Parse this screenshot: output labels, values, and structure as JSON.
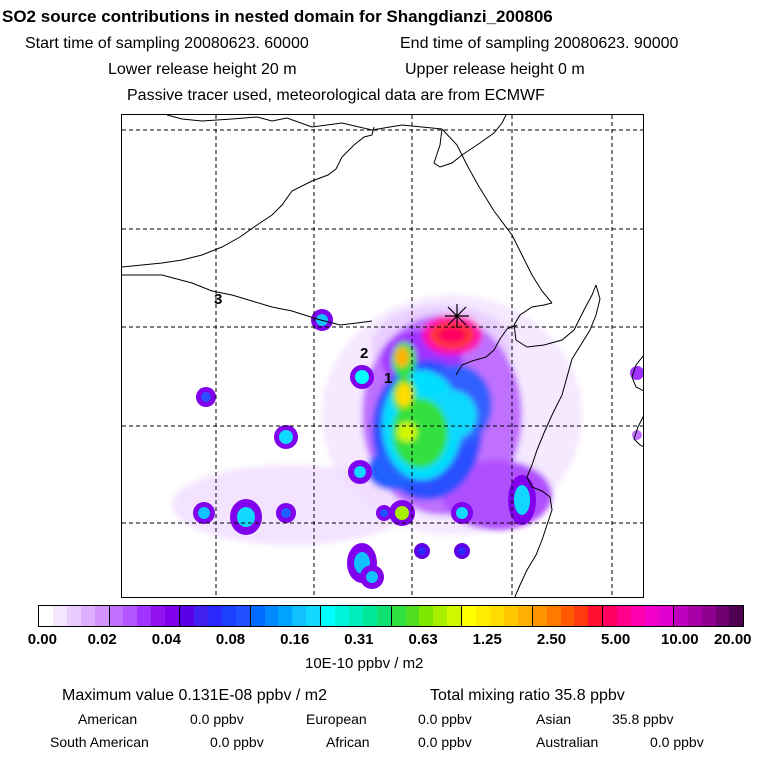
{
  "header": {
    "title": "SO2 source contributions in nested domain for Shangdianzi_200806",
    "start_time": "Start time of sampling 20080623. 60000",
    "end_time": "End time of sampling 20080623. 90000",
    "lower_release": "Lower release height   20 m",
    "upper_release": "Upper release height    0 m",
    "note": "Passive tracer used, meteorological data are from ECMWF"
  },
  "map": {
    "labels": [
      "3",
      "2",
      "1"
    ],
    "station_marker": "star-cross",
    "gridlines": "dashed"
  },
  "colorbar": {
    "ticks": [
      "0.00",
      "0.02",
      "0.04",
      "0.08",
      "0.16",
      "0.31",
      "0.63",
      "1.25",
      "2.50",
      "5.00",
      "10.00",
      "20.00"
    ],
    "unit": "10E-10 ppbv / m2",
    "colors": [
      "#ffffff",
      "#f5e6ff",
      "#ebccff",
      "#dfb0ff",
      "#d394ff",
      "#c070ff",
      "#b055ff",
      "#a033ff",
      "#9010ee",
      "#8000ee",
      "#5a00e6",
      "#4020ee",
      "#2a2aff",
      "#1e40ff",
      "#2050ff",
      "#006cff",
      "#0088ff",
      "#00a4ff",
      "#10c0ff",
      "#10d8ff",
      "#00ffff",
      "#00f5dd",
      "#00eebb",
      "#00e899",
      "#10e070",
      "#30e040",
      "#50e020",
      "#80e800",
      "#a8f000",
      "#d0f800",
      "#ffff00",
      "#ffee00",
      "#ffdd00",
      "#ffc800",
      "#ffb000",
      "#ff9600",
      "#ff7800",
      "#ff5a00",
      "#ff3a10",
      "#ff1030",
      "#ff0060",
      "#ff008c",
      "#ff00b0",
      "#f000c8",
      "#e000d0",
      "#c000c0",
      "#a800a8",
      "#900090",
      "#700070",
      "#500050"
    ]
  },
  "stats": {
    "max_line": "Maximum value  0.131E-08 ppbv / m2",
    "total_line": "Total mixing ratio      35.8 ppbv",
    "regions": [
      {
        "name": "American",
        "value": "0.0 ppbv"
      },
      {
        "name": "European",
        "value": "0.0 ppbv"
      },
      {
        "name": "Asian",
        "value": "35.8 ppbv"
      },
      {
        "name": "South American",
        "value": "0.0 ppbv"
      },
      {
        "name": "African",
        "value": "0.0 ppbv"
      },
      {
        "name": "Australian",
        "value": "0.0 ppbv"
      }
    ]
  }
}
